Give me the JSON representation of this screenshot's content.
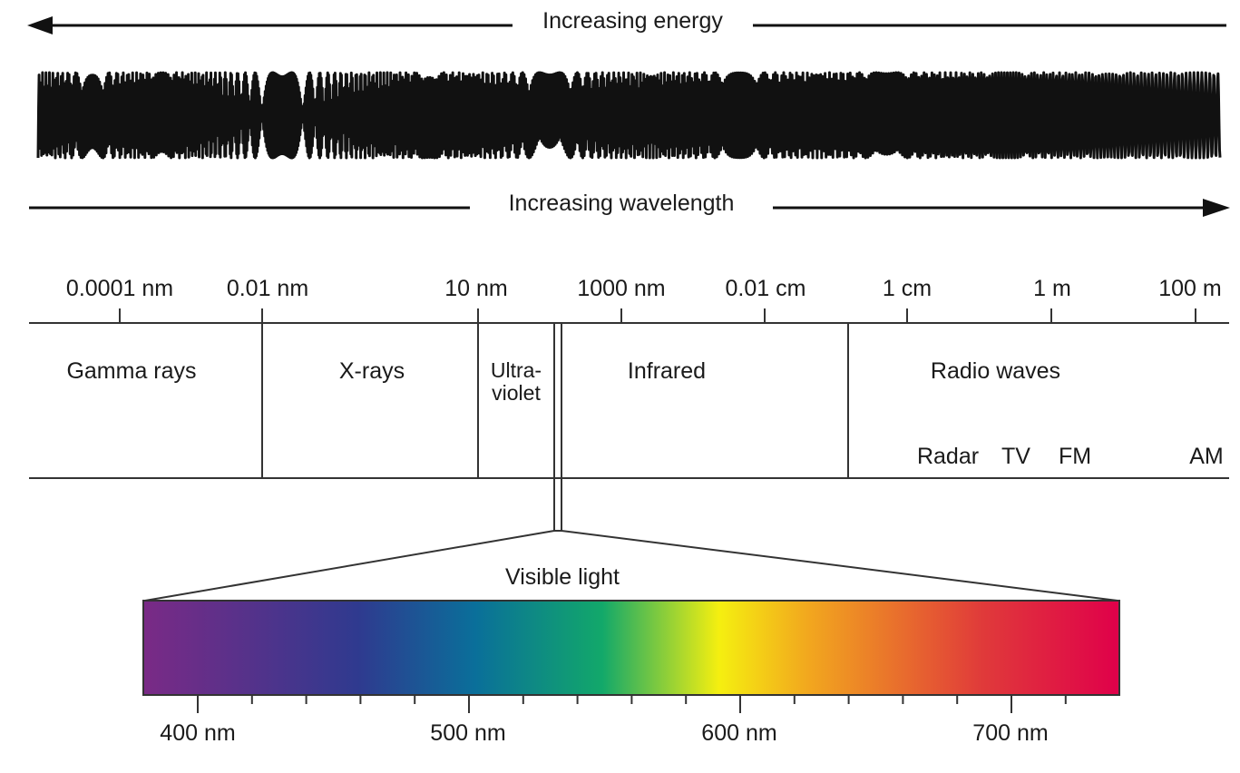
{
  "energy_label": "Increasing energy",
  "wavelength_label": "Increasing wavelength",
  "scale_labels": [
    "0.0001 nm",
    "0.01 nm",
    "10 nm",
    "1000 nm",
    "0.01 cm",
    "1 cm",
    "1 m",
    "100 m"
  ],
  "regions": {
    "gamma": "Gamma rays",
    "xrays": "X-rays",
    "uv_line1": "Ultra-",
    "uv_line2": "violet",
    "infrared": "Infrared",
    "radio": "Radio waves"
  },
  "radio_bands": [
    "Radar",
    "TV",
    "FM",
    "AM"
  ],
  "visible_label": "Visible light",
  "visible_ticks": [
    "400 nm",
    "500 nm",
    "600 nm",
    "700 nm"
  ],
  "spectrum_colors": {
    "violet": "#7a2a86",
    "indigo": "#2f3a8f",
    "blue": "#0a6f9a",
    "green": "#12a86a",
    "yellow": "#f5ef10",
    "orange": "#f2a81e",
    "red": "#e03a3a",
    "deep_red": "#e0004a"
  }
}
